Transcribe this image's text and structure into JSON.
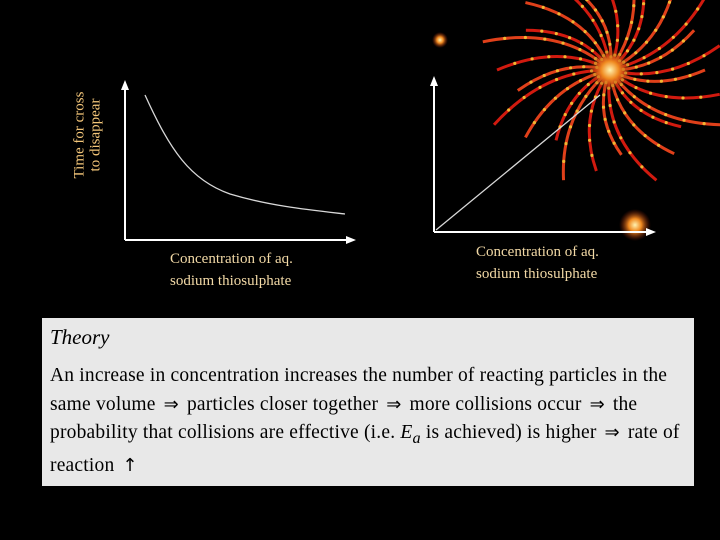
{
  "graphs": {
    "y_axis_label": [
      "Time for cross",
      "to disappear"
    ],
    "left_x_label": [
      "Concentration of aq.",
      "sodium thiosulphate"
    ],
    "right_x_label": [
      "Concentration of aq.",
      "sodium thiosulphate"
    ]
  },
  "theory": {
    "heading": "Theory",
    "segments": [
      {
        "text": "An increase in concentration increases the number of reacting particles in the same volume"
      },
      {
        "symbol": "⇒",
        "icon": "implies-arrow-icon"
      },
      {
        "text": "particles closer together"
      },
      {
        "symbol": "⇒",
        "icon": "implies-arrow-icon"
      },
      {
        "text": "more collisions occur"
      },
      {
        "symbol": "⇒",
        "icon": "implies-arrow-icon"
      },
      {
        "text": "the probability that collisions are effective (i.e. "
      },
      {
        "text": "E",
        "italic": true
      },
      {
        "text": "a",
        "italic": true,
        "subscript": true
      },
      {
        "text": " is achieved) is higher"
      },
      {
        "symbol": "⇒",
        "icon": "implies-arrow-icon"
      },
      {
        "text": "rate of reaction"
      },
      {
        "symbol": "↑",
        "icon": "up-arrow-icon"
      }
    ]
  },
  "colors": {
    "background": "#000000",
    "axis": "#ffffff",
    "label_orange": "#f5c77a",
    "panel": "#e8e8e8",
    "decoration_red": "#d11a0f",
    "decoration_gold": "#f2b632"
  },
  "decoration": {
    "icon": "sparkler-ornament"
  }
}
